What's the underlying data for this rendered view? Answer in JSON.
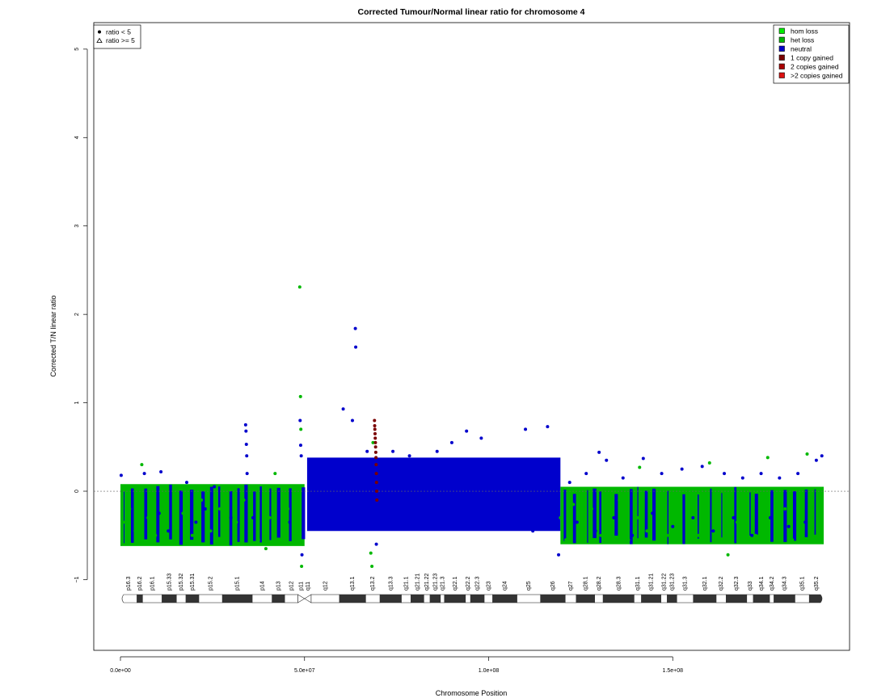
{
  "chart_data": {
    "type": "scatter",
    "title": "Corrected Tumour/Normal linear ratio for chromosome  4",
    "xlabel": "Chromosome Position",
    "ylabel": "Corrected T/N linear ratio",
    "xlim": [
      0,
      191000000
    ],
    "ylim": [
      -1.8,
      5.3
    ],
    "x_ticks": [
      0,
      50000000,
      100000000,
      150000000
    ],
    "x_tick_labels": [
      "0.0e+00",
      "5.0e+07",
      "1.0e+08",
      "1.5e+08"
    ],
    "y_ticks": [
      -1,
      0,
      1,
      2,
      3,
      4,
      5
    ],
    "y_tick_labels": [
      "−1",
      "0",
      "1",
      "2",
      "3",
      "4",
      "5"
    ],
    "reference_line": 0,
    "shape_legend": {
      "position": "top-left",
      "items": [
        {
          "symbol": "dot",
          "label": "ratio < 5"
        },
        {
          "symbol": "triangle",
          "label": "ratio >= 5"
        }
      ]
    },
    "color_legend": {
      "position": "top-right",
      "items": [
        {
          "label": "hom loss",
          "color": "#00ee00"
        },
        {
          "label": "het loss",
          "color": "#00b800"
        },
        {
          "label": "neutral",
          "color": "#0000cc"
        },
        {
          "label": "1 copy gained",
          "color": "#7a0000"
        },
        {
          "label": "2 copies gained",
          "color": "#aa0000"
        },
        {
          "label": ">2 copies gained",
          "color": "#dd1111"
        }
      ]
    },
    "series": [
      {
        "name": "het loss",
        "color": "#00b800",
        "points": [
          [
            1200000,
            -0.35
          ],
          [
            2500000,
            -0.2
          ],
          [
            4000000,
            -0.45
          ],
          [
            5800000,
            0.3
          ],
          [
            7500000,
            -0.3
          ],
          [
            9500000,
            -0.5
          ],
          [
            12000000,
            -0.15
          ],
          [
            14500000,
            -0.4
          ],
          [
            17000000,
            -0.25
          ],
          [
            19500000,
            -0.5
          ],
          [
            22000000,
            -0.1
          ],
          [
            24500000,
            -0.45
          ],
          [
            27000000,
            -0.2
          ],
          [
            29000000,
            -0.55
          ],
          [
            31500000,
            -0.35
          ],
          [
            33500000,
            -0.1
          ],
          [
            35500000,
            -0.4
          ],
          [
            37500000,
            -0.55
          ],
          [
            39500000,
            -0.65
          ],
          [
            40500000,
            -0.3
          ],
          [
            42000000,
            0.2
          ],
          [
            44000000,
            -0.5
          ],
          [
            45500000,
            -0.2
          ],
          [
            47000000,
            -0.45
          ],
          [
            48700000,
            2.31
          ],
          [
            48900000,
            1.07
          ],
          [
            49000000,
            0.7
          ],
          [
            49200000,
            -0.85
          ],
          [
            49400000,
            -0.6
          ],
          [
            68000000,
            -0.7
          ],
          [
            68300000,
            -0.85
          ],
          [
            68600000,
            0.55
          ],
          [
            119500000,
            -0.3
          ],
          [
            121000000,
            -0.55
          ],
          [
            123000000,
            -0.15
          ],
          [
            125500000,
            -0.45
          ],
          [
            128000000,
            -0.2
          ],
          [
            130500000,
            -0.5
          ],
          [
            133000000,
            -0.35
          ],
          [
            135500000,
            -0.1
          ],
          [
            138000000,
            -0.55
          ],
          [
            140500000,
            -0.3
          ],
          [
            141000000,
            0.27
          ],
          [
            143000000,
            -0.45
          ],
          [
            146000000,
            -0.2
          ],
          [
            148500000,
            -0.5
          ],
          [
            151500000,
            -0.3
          ],
          [
            154000000,
            -0.15
          ],
          [
            157000000,
            -0.5
          ],
          [
            159500000,
            -0.25
          ],
          [
            160000000,
            0.32
          ],
          [
            162500000,
            -0.4
          ],
          [
            165000000,
            -0.72
          ],
          [
            167500000,
            -0.35
          ],
          [
            170000000,
            -0.2
          ],
          [
            172500000,
            -0.5
          ],
          [
            175000000,
            -0.3
          ],
          [
            175800000,
            0.38
          ],
          [
            178000000,
            -0.45
          ],
          [
            180500000,
            -0.2
          ],
          [
            182500000,
            -0.55
          ],
          [
            185000000,
            -0.3
          ],
          [
            186500000,
            0.42
          ],
          [
            188000000,
            -0.45
          ],
          [
            189500000,
            -0.2
          ],
          [
            190200000,
            -0.5
          ]
        ]
      },
      {
        "name": "neutral",
        "color": "#0000cc",
        "points": [
          [
            200000,
            0.18
          ],
          [
            6500000,
            0.2
          ],
          [
            10500000,
            -0.25
          ],
          [
            11000000,
            0.22
          ],
          [
            13000000,
            -0.45
          ],
          [
            18000000,
            0.1
          ],
          [
            20500000,
            -0.35
          ],
          [
            23000000,
            -0.2
          ],
          [
            25500000,
            0.05
          ],
          [
            30000000,
            -0.3
          ],
          [
            34000000,
            0.75
          ],
          [
            34100000,
            0.68
          ],
          [
            34200000,
            0.53
          ],
          [
            34300000,
            0.4
          ],
          [
            34400000,
            0.2
          ],
          [
            36000000,
            -0.3
          ],
          [
            43000000,
            -0.2
          ],
          [
            46000000,
            -0.35
          ],
          [
            48800000,
            0.8
          ],
          [
            48950000,
            0.52
          ],
          [
            49100000,
            0.4
          ],
          [
            49300000,
            -0.72
          ],
          [
            52000000,
            -0.2
          ],
          [
            53000000,
            0.15
          ],
          [
            54500000,
            -0.4
          ],
          [
            56000000,
            0.1
          ],
          [
            57500000,
            -0.3
          ],
          [
            59000000,
            0.35
          ],
          [
            60500000,
            0.93
          ],
          [
            61500000,
            -0.25
          ],
          [
            63000000,
            0.8
          ],
          [
            63800000,
            1.84
          ],
          [
            63900000,
            1.63
          ],
          [
            64500000,
            0.3
          ],
          [
            65500000,
            -0.2
          ],
          [
            67000000,
            0.45
          ],
          [
            69500000,
            -0.6
          ],
          [
            71000000,
            0.3
          ],
          [
            72500000,
            -0.1
          ],
          [
            74000000,
            0.45
          ],
          [
            75500000,
            -0.35
          ],
          [
            77000000,
            0.2
          ],
          [
            78500000,
            0.4
          ],
          [
            80000000,
            -0.4
          ],
          [
            82000000,
            0.3
          ],
          [
            84000000,
            -0.2
          ],
          [
            86000000,
            0.45
          ],
          [
            88000000,
            -0.1
          ],
          [
            90000000,
            0.55
          ],
          [
            92000000,
            -0.35
          ],
          [
            94000000,
            0.68
          ],
          [
            96000000,
            -0.15
          ],
          [
            98000000,
            0.6
          ],
          [
            100000000,
            -0.3
          ],
          [
            102000000,
            0.35
          ],
          [
            104000000,
            -0.4
          ],
          [
            106000000,
            0.2
          ],
          [
            108000000,
            -0.2
          ],
          [
            110000000,
            0.7
          ],
          [
            112000000,
            -0.45
          ],
          [
            114000000,
            0.35
          ],
          [
            116000000,
            0.73
          ],
          [
            118000000,
            -0.3
          ],
          [
            119000000,
            -0.72
          ],
          [
            122000000,
            0.1
          ],
          [
            124000000,
            -0.35
          ],
          [
            126500000,
            0.2
          ],
          [
            129000000,
            -0.45
          ],
          [
            130000000,
            0.44
          ],
          [
            132000000,
            0.35
          ],
          [
            134000000,
            -0.3
          ],
          [
            136500000,
            0.15
          ],
          [
            139000000,
            -0.5
          ],
          [
            142000000,
            0.37
          ],
          [
            144500000,
            -0.25
          ],
          [
            147000000,
            0.2
          ],
          [
            150000000,
            -0.4
          ],
          [
            152500000,
            0.25
          ],
          [
            155500000,
            -0.3
          ],
          [
            158000000,
            0.28
          ],
          [
            161000000,
            -0.45
          ],
          [
            164000000,
            0.2
          ],
          [
            166500000,
            -0.3
          ],
          [
            169000000,
            0.15
          ],
          [
            171500000,
            -0.5
          ],
          [
            174000000,
            0.2
          ],
          [
            176500000,
            -0.3
          ],
          [
            179000000,
            0.15
          ],
          [
            181500000,
            -0.4
          ],
          [
            184000000,
            0.2
          ],
          [
            186000000,
            -0.35
          ],
          [
            189000000,
            0.35
          ],
          [
            190500000,
            0.4
          ]
        ]
      },
      {
        "name": "1 copy gained",
        "color": "#7a0000",
        "points": [
          [
            69000000,
            0.8
          ],
          [
            69050000,
            0.74
          ],
          [
            69100000,
            0.7
          ],
          [
            69150000,
            0.65
          ],
          [
            69200000,
            0.6
          ],
          [
            69250000,
            0.55
          ],
          [
            69300000,
            0.5
          ],
          [
            69350000,
            0.44
          ],
          [
            69400000,
            0.38
          ],
          [
            69450000,
            0.3
          ],
          [
            69500000,
            0.2
          ],
          [
            69550000,
            0.1
          ],
          [
            69600000,
            0.0
          ],
          [
            69650000,
            -0.1
          ]
        ]
      }
    ],
    "bands": [
      {
        "label": "p16.3",
        "start": 0,
        "end": 4500000,
        "stain": "white"
      },
      {
        "label": "p16.2",
        "start": 4500000,
        "end": 6000000,
        "stain": "dark"
      },
      {
        "label": "p16.1",
        "start": 6000000,
        "end": 11300000,
        "stain": "white"
      },
      {
        "label": "p15.33",
        "start": 11300000,
        "end": 15200000,
        "stain": "dark"
      },
      {
        "label": "p15.32",
        "start": 15200000,
        "end": 17800000,
        "stain": "white"
      },
      {
        "label": "p15.31",
        "start": 17800000,
        "end": 21300000,
        "stain": "dark"
      },
      {
        "label": "p15.2",
        "start": 21300000,
        "end": 27700000,
        "stain": "white"
      },
      {
        "label": "p15.1",
        "start": 27700000,
        "end": 35800000,
        "stain": "dark"
      },
      {
        "label": "p14",
        "start": 35800000,
        "end": 41200000,
        "stain": "white"
      },
      {
        "label": "p13",
        "start": 41200000,
        "end": 44600000,
        "stain": "dark"
      },
      {
        "label": "p12",
        "start": 44600000,
        "end": 48200000,
        "stain": "white"
      },
      {
        "label": "p11",
        "start": 48200000,
        "end": 50000000,
        "stain": "cen"
      },
      {
        "label": "q11",
        "start": 50000000,
        "end": 51800000,
        "stain": "cen"
      },
      {
        "label": "q12",
        "start": 51800000,
        "end": 59500000,
        "stain": "white"
      },
      {
        "label": "q13.1",
        "start": 59500000,
        "end": 66600000,
        "stain": "dark"
      },
      {
        "label": "q13.2",
        "start": 66600000,
        "end": 70500000,
        "stain": "white"
      },
      {
        "label": "q13.3",
        "start": 70500000,
        "end": 76300000,
        "stain": "dark"
      },
      {
        "label": "q21.1",
        "start": 76300000,
        "end": 78900000,
        "stain": "white"
      },
      {
        "label": "q21.21",
        "start": 78900000,
        "end": 82400000,
        "stain": "dark"
      },
      {
        "label": "q21.22",
        "start": 82400000,
        "end": 84100000,
        "stain": "white"
      },
      {
        "label": "q21.23",
        "start": 84100000,
        "end": 86900000,
        "stain": "dark"
      },
      {
        "label": "q21.3",
        "start": 86900000,
        "end": 88000000,
        "stain": "white"
      },
      {
        "label": "q22.1",
        "start": 88000000,
        "end": 93700000,
        "stain": "dark"
      },
      {
        "label": "q22.2",
        "start": 93700000,
        "end": 95100000,
        "stain": "white"
      },
      {
        "label": "q22.3",
        "start": 95100000,
        "end": 98800000,
        "stain": "dark"
      },
      {
        "label": "q23",
        "start": 98800000,
        "end": 101100000,
        "stain": "white"
      },
      {
        "label": "q24",
        "start": 101100000,
        "end": 107700000,
        "stain": "dark"
      },
      {
        "label": "q25",
        "start": 107700000,
        "end": 114100000,
        "stain": "white"
      },
      {
        "label": "q26",
        "start": 114100000,
        "end": 120800000,
        "stain": "dark"
      },
      {
        "label": "q27",
        "start": 120800000,
        "end": 123800000,
        "stain": "white"
      },
      {
        "label": "q28.1",
        "start": 123800000,
        "end": 128800000,
        "stain": "dark"
      },
      {
        "label": "q28.2",
        "start": 128800000,
        "end": 131100000,
        "stain": "white"
      },
      {
        "label": "q28.3",
        "start": 131100000,
        "end": 139500000,
        "stain": "dark"
      },
      {
        "label": "q31.1",
        "start": 139500000,
        "end": 141500000,
        "stain": "white"
      },
      {
        "label": "q31.21",
        "start": 141500000,
        "end": 146800000,
        "stain": "dark"
      },
      {
        "label": "q31.22",
        "start": 146800000,
        "end": 148500000,
        "stain": "white"
      },
      {
        "label": "q31.23",
        "start": 148500000,
        "end": 151100000,
        "stain": "dark"
      },
      {
        "label": "q31.3",
        "start": 151100000,
        "end": 155600000,
        "stain": "white"
      },
      {
        "label": "q32.1",
        "start": 155600000,
        "end": 161800000,
        "stain": "dark"
      },
      {
        "label": "q32.2",
        "start": 161800000,
        "end": 164500000,
        "stain": "white"
      },
      {
        "label": "q32.3",
        "start": 164500000,
        "end": 170100000,
        "stain": "dark"
      },
      {
        "label": "q33",
        "start": 170100000,
        "end": 171900000,
        "stain": "white"
      },
      {
        "label": "q34.1",
        "start": 171900000,
        "end": 176300000,
        "stain": "dark"
      },
      {
        "label": "q34.2",
        "start": 176300000,
        "end": 177500000,
        "stain": "white"
      },
      {
        "label": "q34.3",
        "start": 177500000,
        "end": 183200000,
        "stain": "dark"
      },
      {
        "label": "q35.1",
        "start": 183200000,
        "end": 187100000,
        "stain": "white"
      },
      {
        "label": "q35.2",
        "start": 187100000,
        "end": 191000000,
        "stain": "dark"
      }
    ]
  }
}
